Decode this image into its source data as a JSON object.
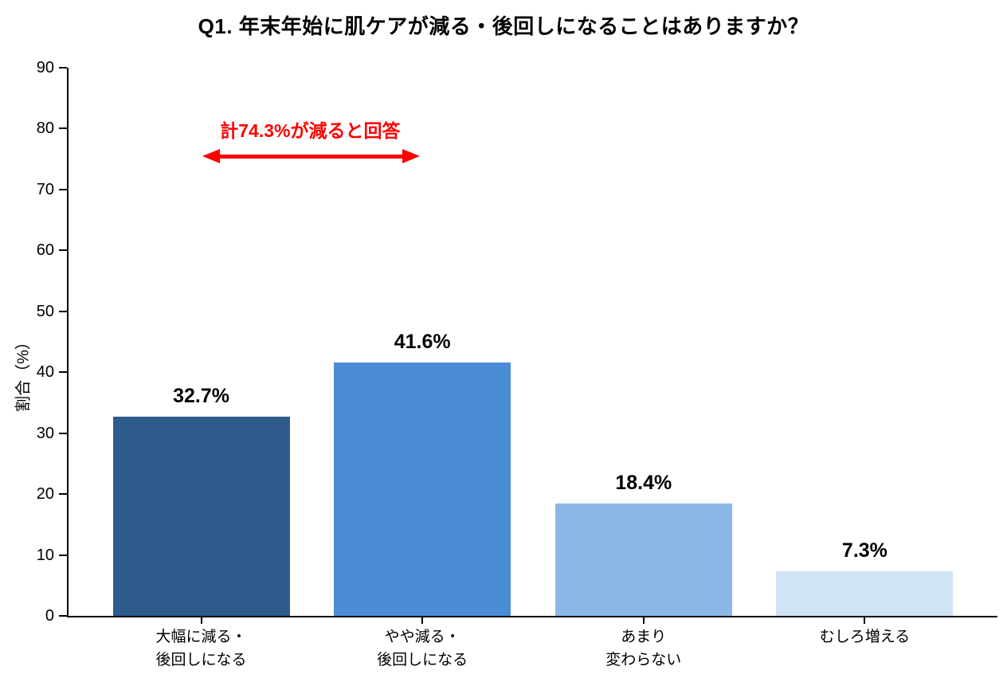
{
  "chart_data": {
    "type": "bar",
    "title": "Q1. 年末年始に肌ケアが減る・後回しになることはありますか？",
    "ylabel": "割合（%）",
    "xlabel": "",
    "categories": [
      "大幅に減る・\n後回しになる",
      "やや減る・\n後回しになる",
      "あまり\n変わらない",
      "むしろ増える"
    ],
    "values": [
      32.7,
      41.6,
      18.4,
      7.3
    ],
    "value_labels": [
      "32.7%",
      "41.6%",
      "18.4%",
      "7.3%"
    ],
    "bar_colors": [
      "#2d5c8c",
      "#4a8dd6",
      "#8cb8e8",
      "#d0e4f7"
    ],
    "ylim": [
      0,
      90
    ],
    "yticks": [
      0,
      10,
      20,
      30,
      40,
      50,
      60,
      70,
      80,
      90
    ],
    "grid": false,
    "legend_position": "none",
    "axis_color": "#000000",
    "annotation": {
      "text": "計74.3%が減ると回答",
      "color": "#ff0000",
      "arrow_from_category": 0,
      "arrow_to_category": 1,
      "arrow_y_percent": 75.5
    }
  }
}
